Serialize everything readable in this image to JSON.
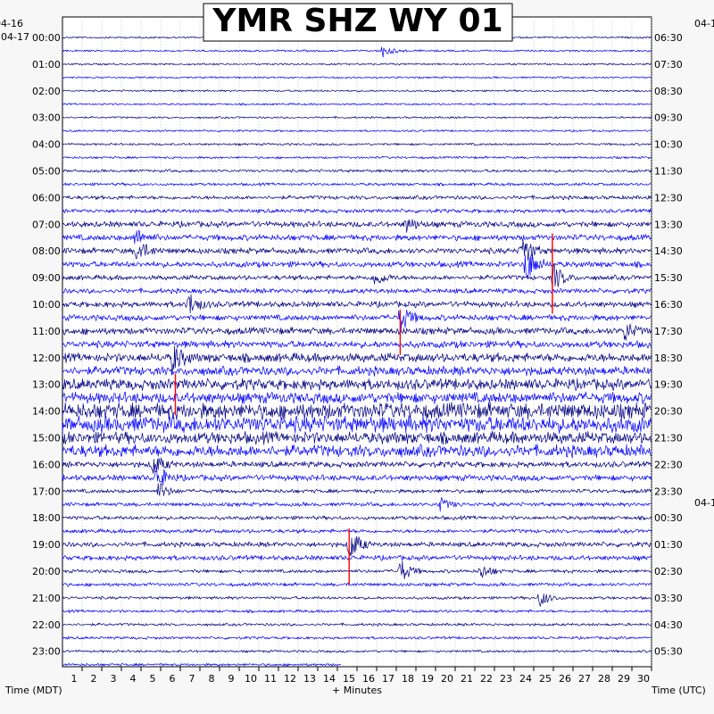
{
  "chart_data": {
    "type": "line",
    "title": "YMR SHZ WY 01",
    "xlabel": "+ Minutes",
    "left_axis_label": "Time (MDT)",
    "right_axis_label": "Time (UTC)",
    "x_range": [
      0,
      30
    ],
    "x_ticks": [
      1,
      2,
      3,
      4,
      5,
      6,
      7,
      8,
      9,
      10,
      11,
      12,
      13,
      14,
      15,
      16,
      17,
      18,
      19,
      20,
      21,
      22,
      23,
      24,
      25,
      26,
      27,
      28,
      29,
      30
    ],
    "left_date_top": "04-16",
    "left_date_start": "04-17",
    "right_date_top": "04-1",
    "right_date_mid": "04-1",
    "left_time_labels": [
      "00:00",
      "01:00",
      "02:00",
      "03:00",
      "04:00",
      "05:00",
      "06:00",
      "07:00",
      "08:00",
      "09:00",
      "10:00",
      "11:00",
      "12:00",
      "13:00",
      "14:00",
      "15:00",
      "16:00",
      "17:00",
      "18:00",
      "19:00",
      "20:00",
      "21:00",
      "22:00",
      "23:00"
    ],
    "right_time_labels": [
      "06:30",
      "07:30",
      "08:30",
      "09:30",
      "10:30",
      "11:30",
      "12:30",
      "13:30",
      "14:30",
      "15:30",
      "16:30",
      "17:30",
      "18:30",
      "19:30",
      "20:30",
      "21:30",
      "22:30",
      "23:30",
      "00:30",
      "01:30",
      "02:30",
      "03:30",
      "04:30",
      "05:30"
    ],
    "trace_count": 48,
    "trace_colors": [
      "#000080",
      "#0000ff"
    ],
    "clip_color": "#ff0000",
    "grid": true,
    "last_trace_end_minute": 14.2,
    "amplitude_by_hour": [
      1,
      1,
      1,
      1,
      1.2,
      1.5,
      2,
      3,
      3,
      2.5,
      3,
      3.5,
      4.5,
      5.5,
      8,
      6,
      3,
      2,
      2,
      2.5,
      1.8,
      1.5,
      1.4,
      1.3
    ],
    "events": [
      {
        "trace": 1,
        "minute": 16.3,
        "amp": 7
      },
      {
        "trace": 14,
        "minute": 17.5,
        "amp": 8
      },
      {
        "trace": 15,
        "minute": 3.7,
        "amp": 10
      },
      {
        "trace": 16,
        "minute": 3.8,
        "amp": 14
      },
      {
        "trace": 16,
        "minute": 23.4,
        "amp": 18
      },
      {
        "trace": 17,
        "minute": 23.6,
        "amp": 22
      },
      {
        "trace": 18,
        "minute": 15.9,
        "amp": 10
      },
      {
        "trace": 18,
        "minute": 25.0,
        "amp": 16
      },
      {
        "trace": 20,
        "minute": 6.4,
        "amp": 14
      },
      {
        "trace": 21,
        "minute": 17.2,
        "amp": 16
      },
      {
        "trace": 22,
        "minute": 28.6,
        "amp": 12
      },
      {
        "trace": 24,
        "minute": 5.6,
        "amp": 16
      },
      {
        "trace": 32,
        "minute": 4.6,
        "amp": 12
      },
      {
        "trace": 33,
        "minute": 4.8,
        "amp": 14
      },
      {
        "trace": 34,
        "minute": 4.9,
        "amp": 10
      },
      {
        "trace": 35,
        "minute": 19.2,
        "amp": 8
      },
      {
        "trace": 38,
        "minute": 14.6,
        "amp": 20
      },
      {
        "trace": 40,
        "minute": 17.2,
        "amp": 14
      },
      {
        "trace": 40,
        "minute": 21.3,
        "amp": 9
      },
      {
        "trace": 42,
        "minute": 24.3,
        "amp": 10
      }
    ],
    "clip_marks": [
      {
        "minute": 24.95,
        "y_from_trace": 14.7,
        "y_to_trace": 20.7
      },
      {
        "minute": 17.2,
        "y_from_trace": 20.4,
        "y_to_trace": 23.8
      },
      {
        "minute": 5.75,
        "y_from_trace": 25.2,
        "y_to_trace": 28.3
      },
      {
        "minute": 14.6,
        "y_from_trace": 36.8,
        "y_to_trace": 41.0
      }
    ]
  }
}
